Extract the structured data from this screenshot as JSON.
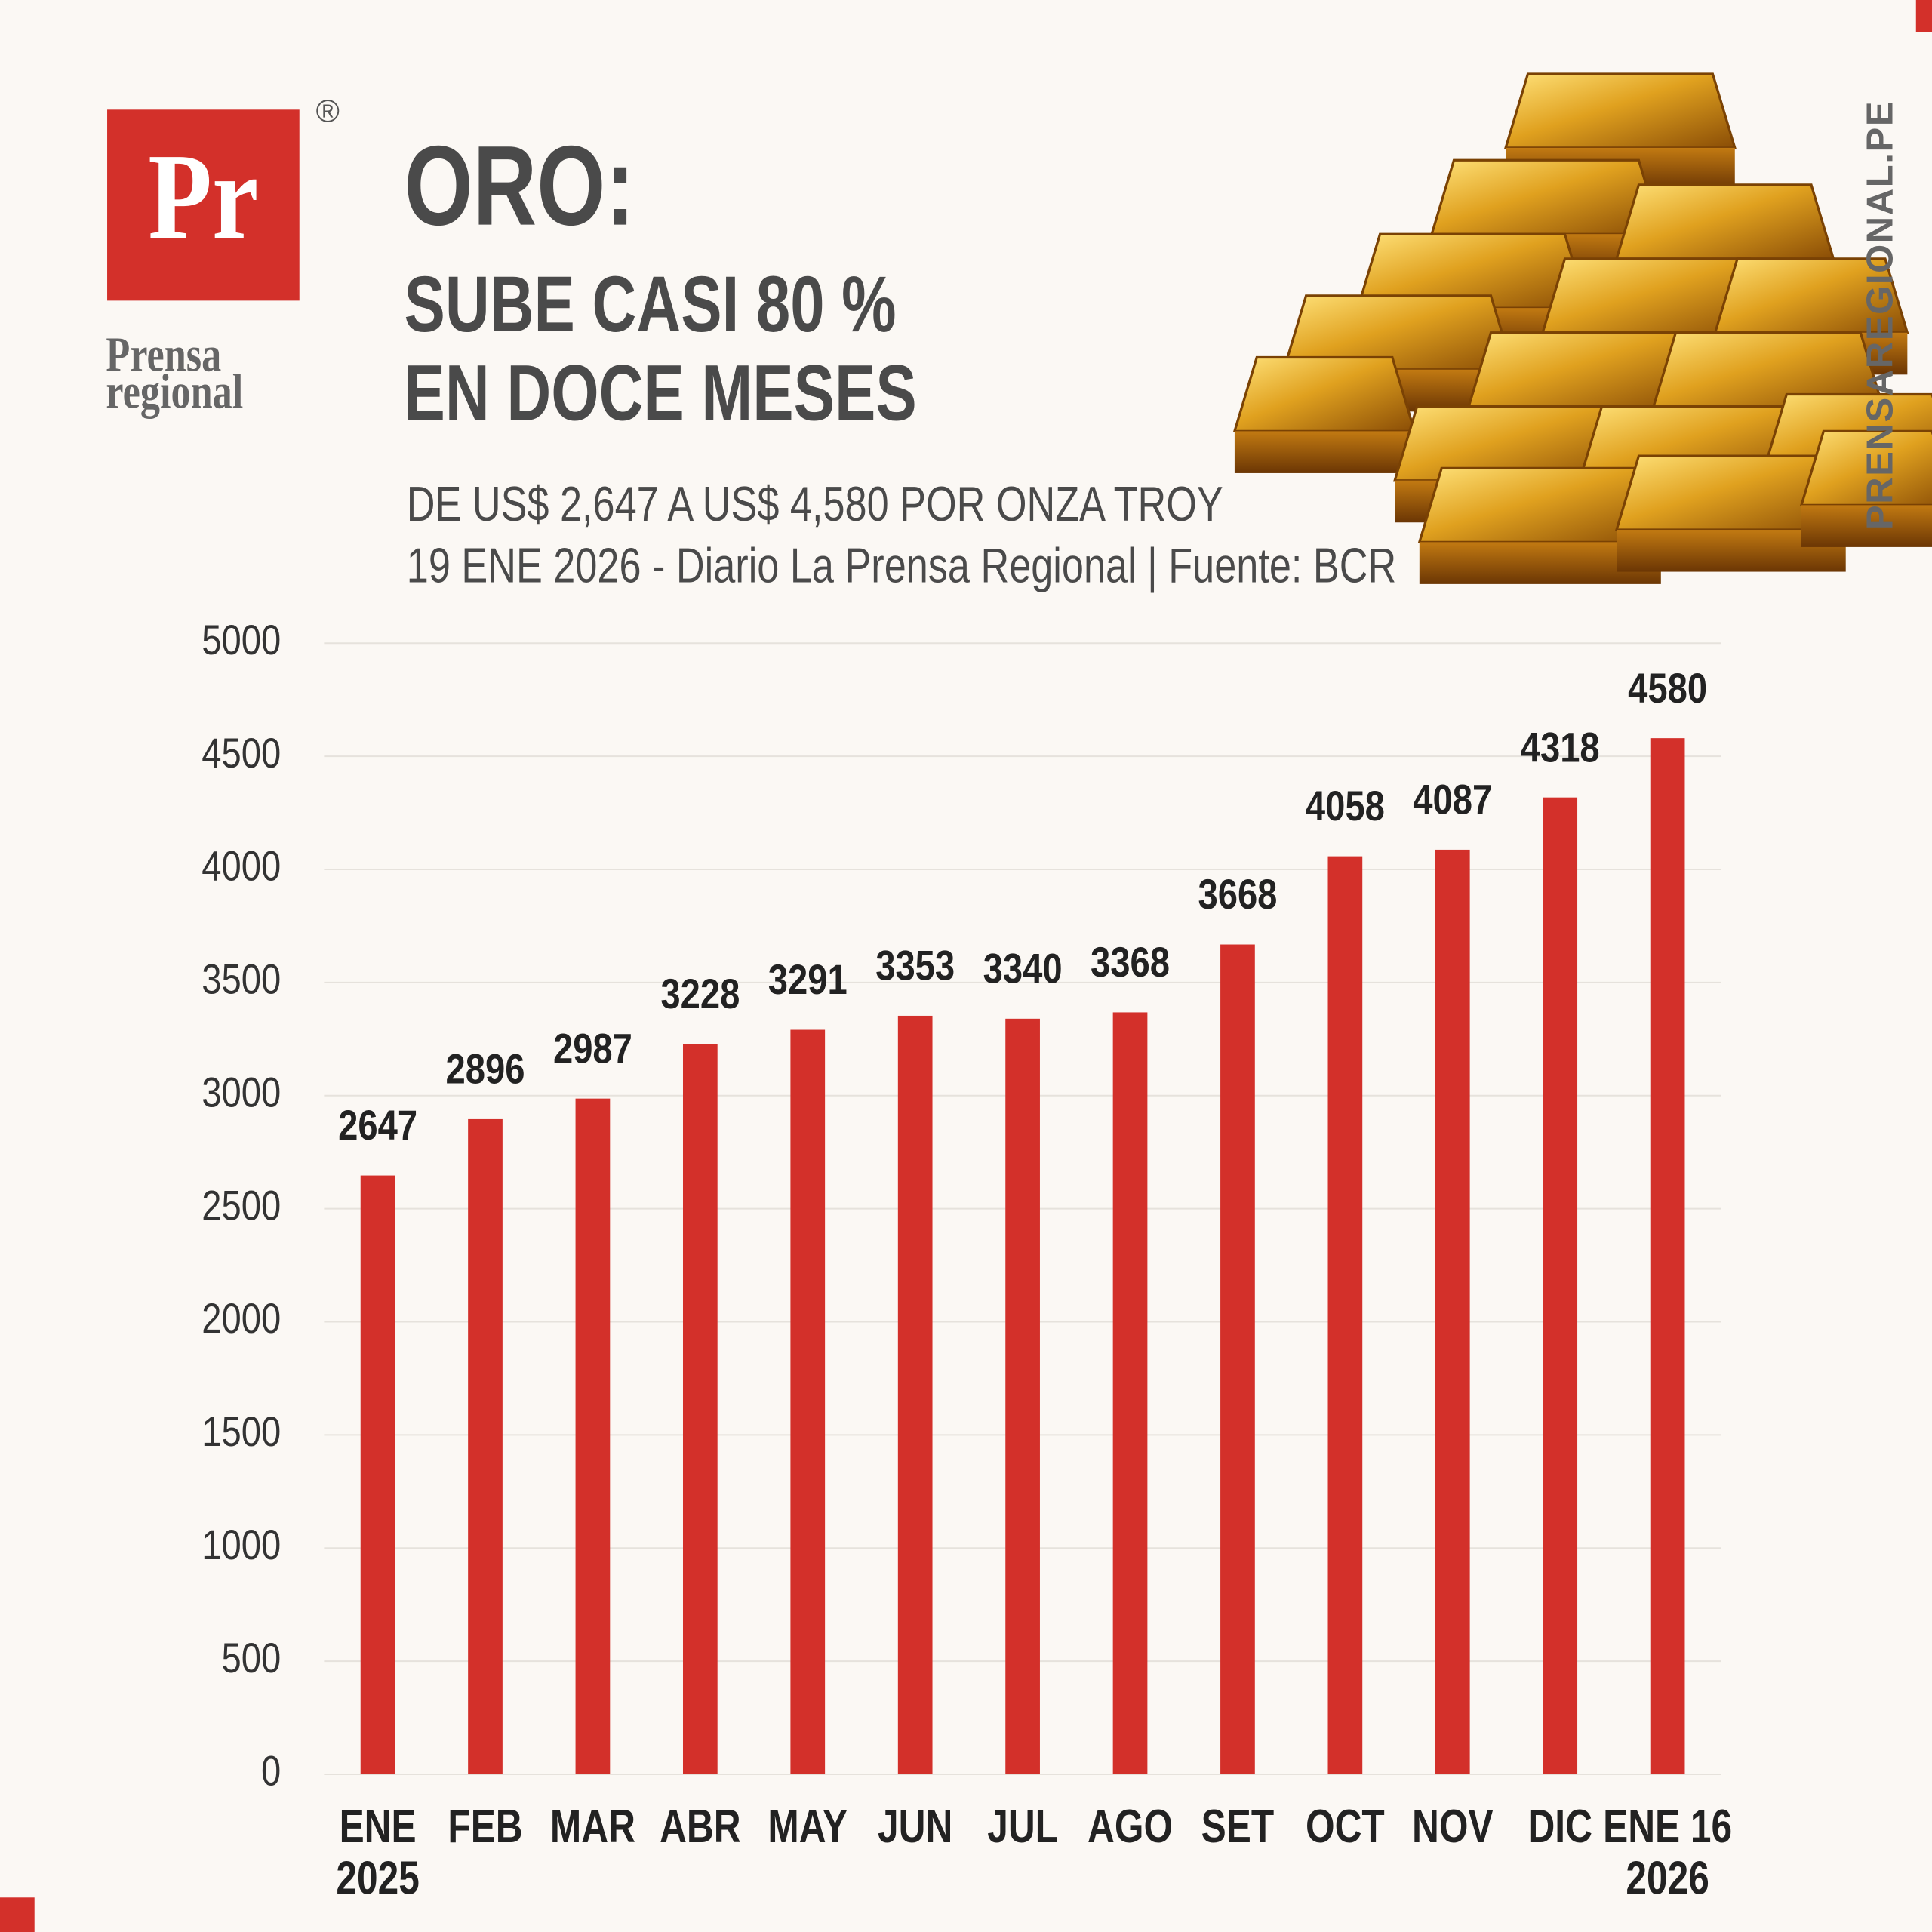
{
  "header": {
    "logo": "Pr",
    "registered": "®",
    "brand_line1": "Prensa",
    "brand_line2": "regional",
    "watermark": "PRENSAREGIONAL.PE"
  },
  "chart_data": {
    "type": "bar",
    "title": "ORO:",
    "subtitle": [
      "SUBE CASI 80 %",
      "EN DOCE MESES"
    ],
    "description": "DE US$ 2,647 A US$ 4,580 POR ONZA TROY",
    "source": "19 ENE 2026 - Diario La Prensa Regional | Fuente: BCR",
    "categories": [
      "ENE\n2025",
      "FEB",
      "MAR",
      "ABR",
      "MAY",
      "JUN",
      "JUL",
      "AGO",
      "SET",
      "OCT",
      "NOV",
      "DIC",
      "ENE 16\n2026"
    ],
    "values": [
      2647,
      2896,
      2987,
      3228,
      3291,
      3353,
      3340,
      3368,
      3668,
      4058,
      4087,
      4318,
      4580
    ],
    "color": "#d3302a",
    "ylim": [
      0,
      5000
    ],
    "yticks": [
      0,
      500,
      1000,
      1500,
      2000,
      2500,
      3000,
      3500,
      4000,
      4500,
      5000
    ],
    "grid": true
  }
}
